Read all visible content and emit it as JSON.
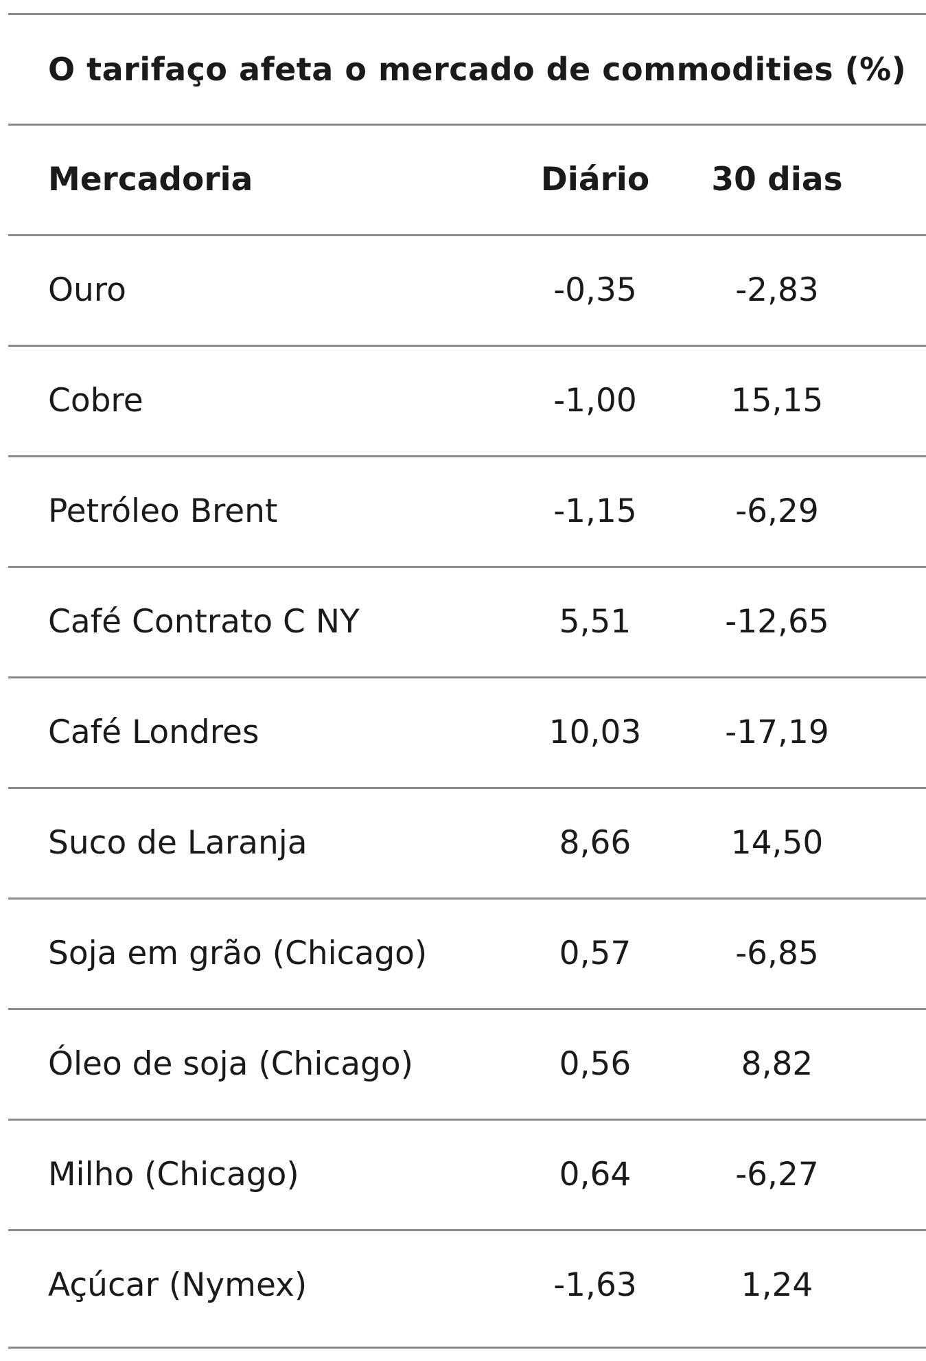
{
  "title": "O tarifaço afeta o mercado de commodities (%)",
  "columns": {
    "name": "Mercadoria",
    "daily": "Diário",
    "thirty": "30 dias"
  },
  "rows": [
    {
      "name": "Ouro",
      "daily": "-0,35",
      "thirty": "-2,83"
    },
    {
      "name": "Cobre",
      "daily": "-1,00",
      "thirty": "15,15"
    },
    {
      "name": "Petróleo Brent",
      "daily": "-1,15",
      "thirty": "-6,29"
    },
    {
      "name": "Café Contrato C NY",
      "daily": "5,51",
      "thirty": "-12,65"
    },
    {
      "name": "Café Londres",
      "daily": "10,03",
      "thirty": "-17,19"
    },
    {
      "name": "Suco de Laranja",
      "daily": "8,66",
      "thirty": "14,50"
    },
    {
      "name": "Soja em grão (Chicago)",
      "daily": "0,57",
      "thirty": "-6,85"
    },
    {
      "name": "Óleo de soja (Chicago)",
      "daily": "0,56",
      "thirty": "8,82"
    },
    {
      "name": "Milho (Chicago)",
      "daily": "0,64",
      "thirty": "-6,27"
    },
    {
      "name": "Açúcar (Nymex)",
      "daily": "-1,63",
      "thirty": "1,24"
    }
  ],
  "colors": {
    "rule": "#8c8c8c",
    "text": "#1a1a1a"
  }
}
